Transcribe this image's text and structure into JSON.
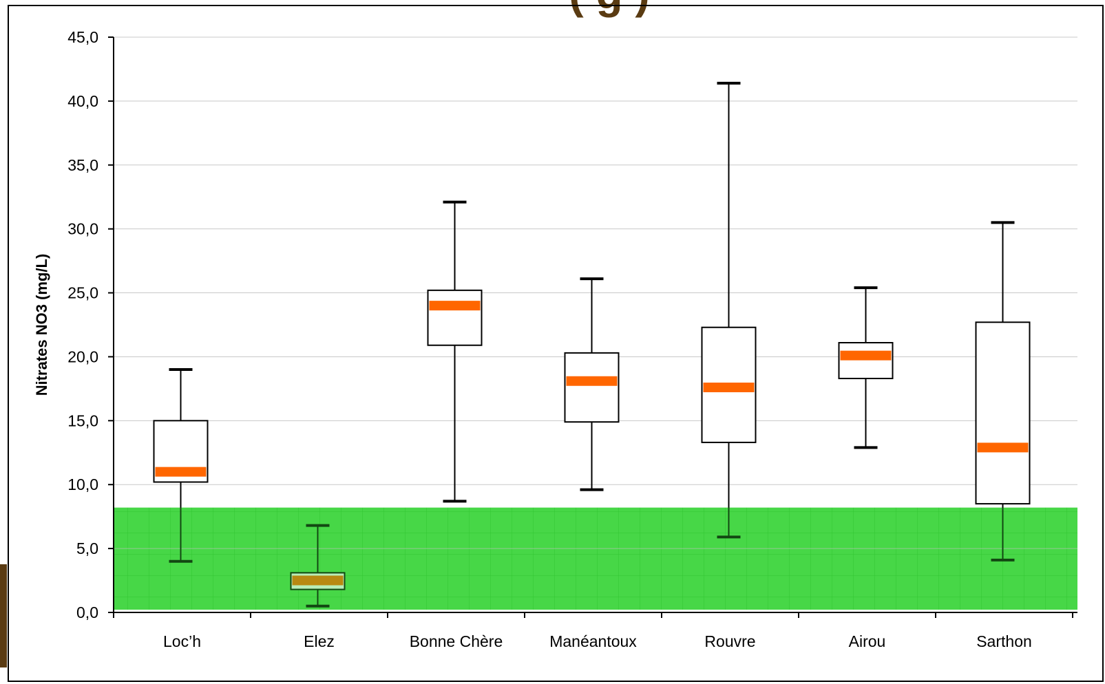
{
  "title_fragment": "( g )",
  "chart_data": {
    "type": "boxplot",
    "title": "",
    "xlabel": "",
    "ylabel": "Nitrates NO3 (mg/L)",
    "ylim": [
      0,
      45
    ],
    "y_ticks": [
      "0,0",
      "5,0",
      "10,0",
      "15,0",
      "20,0",
      "25,0",
      "30,0",
      "35,0",
      "40,0",
      "45,0"
    ],
    "y_tick_values": [
      0,
      5,
      10,
      15,
      20,
      25,
      30,
      35,
      40,
      45
    ],
    "grid": true,
    "threshold_band": {
      "from": 0,
      "to": 8.2,
      "color": "#33cc33"
    },
    "colors": {
      "median": "#ff6600",
      "box_fill": "#ffffff",
      "box_stroke": "#000000"
    },
    "categories": [
      "Loc’h",
      "Elez",
      "Bonne Chère",
      "Manéantoux",
      "Rouvre",
      "Airou",
      "Sarthon"
    ],
    "boxes": [
      {
        "name": "Loc’h",
        "min": 4.0,
        "q1": 10.2,
        "median": 11.0,
        "q3": 15.0,
        "max": 19.0
      },
      {
        "name": "Elez",
        "min": 0.5,
        "q1": 1.8,
        "median": 2.5,
        "q3": 3.1,
        "max": 6.8
      },
      {
        "name": "Bonne Chère",
        "min": 8.7,
        "q1": 20.9,
        "median": 24.0,
        "q3": 25.2,
        "max": 32.1
      },
      {
        "name": "Manéantoux",
        "min": 9.6,
        "q1": 14.9,
        "median": 18.1,
        "q3": 20.3,
        "max": 26.1
      },
      {
        "name": "Rouvre",
        "min": 5.9,
        "q1": 13.3,
        "median": 17.6,
        "q3": 22.3,
        "max": 41.4
      },
      {
        "name": "Airou",
        "min": 12.9,
        "q1": 18.3,
        "median": 20.1,
        "q3": 21.1,
        "max": 25.4
      },
      {
        "name": "Sarthon",
        "min": 4.1,
        "q1": 8.5,
        "median": 12.9,
        "q3": 22.7,
        "max": 30.5
      }
    ]
  }
}
